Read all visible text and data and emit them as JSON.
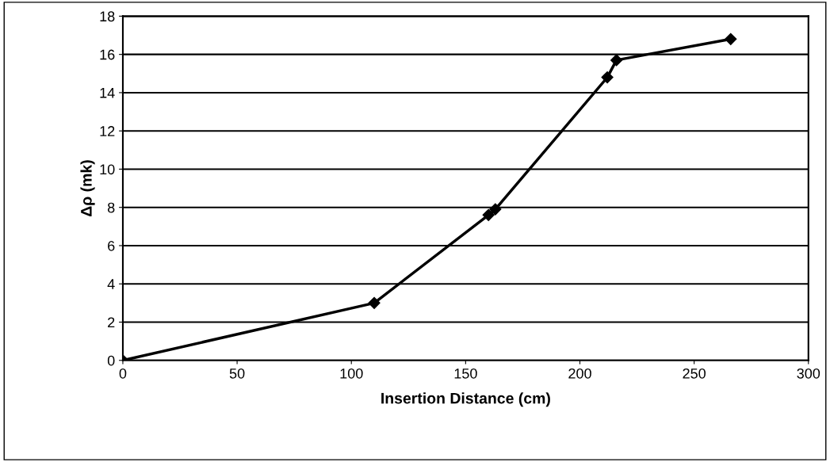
{
  "chart_data": {
    "type": "line",
    "xlabel": "Insertion Distance (cm)",
    "ylabel": "Δρ (mk)",
    "x": [
      0,
      110,
      160,
      163,
      212,
      216,
      266
    ],
    "series": [
      {
        "color": "#000000",
        "values": [
          0,
          3,
          7.6,
          7.9,
          14.8,
          15.7,
          16.8
        ]
      }
    ],
    "xlim": [
      0,
      300
    ],
    "xticks": [
      0,
      50,
      100,
      150,
      200,
      250,
      300
    ],
    "ylim": [
      0,
      18
    ],
    "yticks": [
      0,
      2,
      4,
      6,
      8,
      10,
      12,
      14,
      16,
      18
    ],
    "grid": "y",
    "marker": "diamond",
    "line_style": "solid",
    "legend": false
  }
}
